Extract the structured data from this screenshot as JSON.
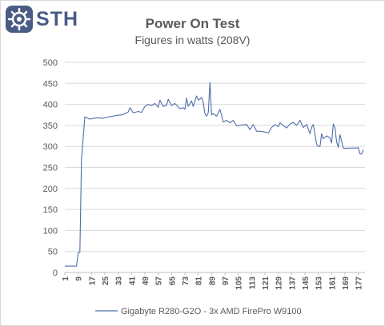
{
  "logo": {
    "brand_text": "STH"
  },
  "chart_data": {
    "type": "line",
    "title": "Power On Test",
    "subtitle": "Figures in watts (208V)",
    "xlabel": "",
    "ylabel": "",
    "ylim": [
      0,
      500
    ],
    "yticks": [
      0,
      50,
      100,
      150,
      200,
      250,
      300,
      350,
      400,
      450,
      500
    ],
    "xticks": [
      1,
      9,
      17,
      25,
      33,
      41,
      49,
      57,
      65,
      73,
      81,
      89,
      97,
      105,
      113,
      121,
      129,
      137,
      145,
      153,
      161,
      169,
      177
    ],
    "xtick_labels": [
      "1",
      "9",
      "17",
      "25",
      "33",
      "41",
      "49",
      "57",
      "65",
      "73",
      "81",
      "89",
      "97",
      "105",
      "113",
      "121",
      "129",
      "137",
      "145",
      "153",
      "161",
      "169",
      "177"
    ],
    "grid": "horizontal",
    "legend_position": "bottom",
    "series": [
      {
        "name": "Gigabyte R280-G2O - 3x AMD FirePro W9100",
        "color": "#4f6ea6",
        "x": [
          1,
          8,
          9,
          10,
          11,
          13,
          14,
          16,
          20,
          24,
          27,
          30,
          32,
          35,
          37,
          39,
          40,
          42,
          45,
          47,
          49,
          51,
          53,
          55,
          56,
          57,
          58,
          60,
          62,
          63,
          65,
          67,
          70,
          72,
          73,
          74,
          75,
          77,
          78,
          80,
          81,
          83,
          84,
          85,
          86,
          87,
          88,
          89,
          90,
          92,
          94,
          96,
          98,
          100,
          102,
          104,
          107,
          110,
          112,
          114,
          116,
          118,
          120,
          123,
          125,
          127,
          129,
          130,
          132,
          134,
          136,
          138,
          140,
          142,
          144,
          146,
          148,
          149,
          150,
          152,
          153,
          154,
          155,
          156,
          158,
          160,
          161,
          162,
          163,
          164,
          165,
          166,
          168,
          169,
          170,
          171,
          172,
          175,
          177,
          178,
          179,
          180
        ],
        "y": [
          15,
          15,
          47,
          48,
          270,
          370,
          368,
          365,
          368,
          367,
          370,
          372,
          374,
          375,
          378,
          382,
          392,
          380,
          383,
          381,
          395,
          400,
          397,
          402,
          398,
          393,
          410,
          395,
          398,
          412,
          397,
          402,
          390,
          392,
          388,
          415,
          395,
          408,
          395,
          420,
          410,
          416,
          405,
          378,
          372,
          380,
          452,
          375,
          378,
          372,
          388,
          358,
          362,
          356,
          362,
          349,
          351,
          352,
          340,
          352,
          336,
          336,
          335,
          332,
          345,
          352,
          347,
          356,
          350,
          344,
          353,
          357,
          350,
          362,
          345,
          352,
          330,
          345,
          352,
          305,
          300,
          300,
          330,
          318,
          325,
          320,
          308,
          353,
          345,
          310,
          298,
          328,
          296,
          295,
          296,
          295,
          296,
          296,
          297,
          282,
          282,
          292
        ]
      }
    ]
  }
}
